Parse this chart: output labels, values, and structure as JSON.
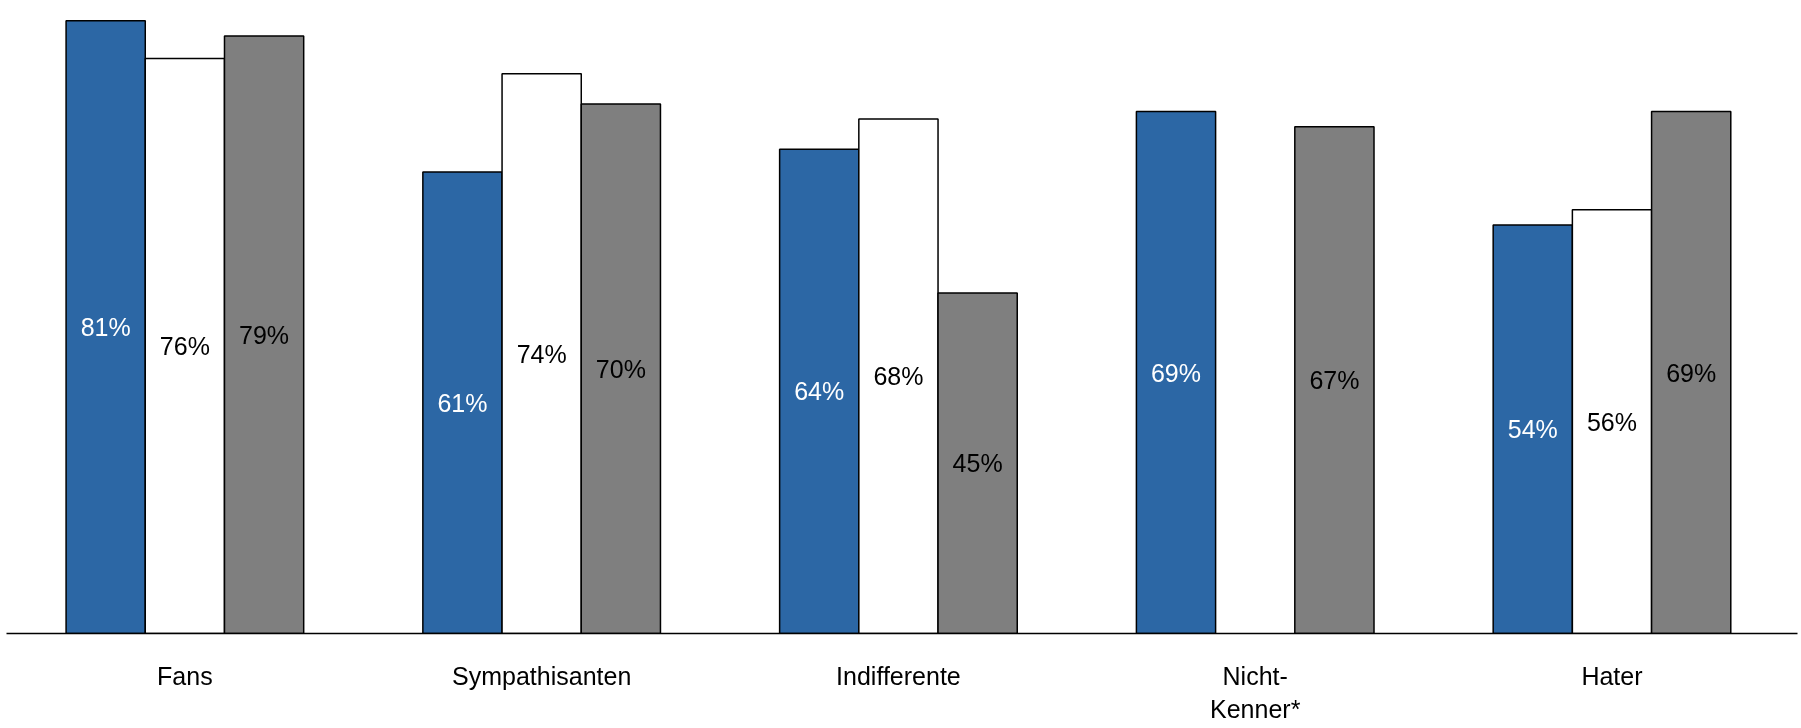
{
  "chart_data": {
    "type": "bar",
    "categories": [
      "Fans",
      "Sympathisanten",
      "Indifferente",
      "Nicht-\nKenner*",
      "Hater"
    ],
    "series": [
      {
        "color": "#2c67a5",
        "values": [
          81,
          61,
          64,
          69,
          54
        ],
        "value_labels": [
          "81%",
          "61%",
          "64%",
          "69%",
          "54%"
        ]
      },
      {
        "color": "#ffffff",
        "values": [
          76,
          74,
          68,
          null,
          56
        ],
        "value_labels": [
          "76%",
          "74%",
          "68%",
          null,
          "56%"
        ]
      },
      {
        "color": "#7f7f7f",
        "values": [
          79,
          70,
          45,
          67,
          69
        ],
        "value_labels": [
          "79%",
          "70%",
          "45%",
          "67%",
          "69%"
        ]
      }
    ],
    "grid": false
  }
}
